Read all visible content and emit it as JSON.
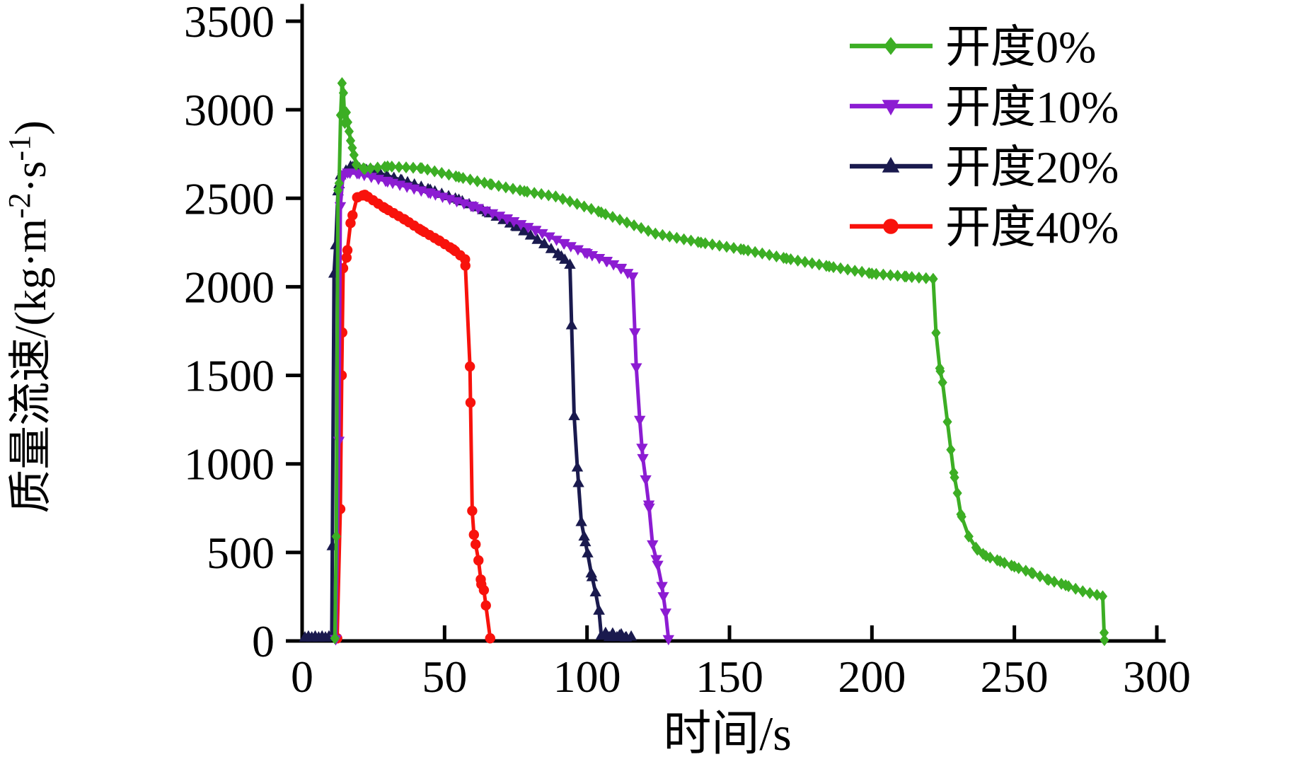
{
  "chart_data": {
    "type": "line",
    "title": "",
    "xlabel": "时间/s",
    "ylabel_plain": "质量流速/(kg·m⁻²·s⁻¹)",
    "ylabel_parts": {
      "p1": "质量流速/(kg·m",
      "sup1": "-2",
      "p2": "·s",
      "sup2": "-1",
      "p3": ")"
    },
    "xlim": [
      0,
      300
    ],
    "ylim": [
      0,
      3500
    ],
    "x_ticks": [
      0,
      50,
      100,
      150,
      200,
      250,
      300
    ],
    "y_ticks": [
      0,
      500,
      1000,
      1500,
      2000,
      2500,
      3000,
      3500
    ],
    "grid": false,
    "legend_position": "top-right",
    "axis_color": "#000000",
    "series": [
      {
        "name": "开度0%",
        "color": "#3CAE24",
        "marker": "diamond",
        "marker_dt": 2.5,
        "points": [
          [
            11.5,
            15
          ],
          [
            12,
            590
          ],
          [
            12.6,
            2545
          ],
          [
            13,
            2585
          ],
          [
            13.5,
            2970
          ],
          [
            14,
            3150
          ],
          [
            14.5,
            3095
          ],
          [
            15,
            2925
          ],
          [
            15.5,
            2985
          ],
          [
            16,
            2930
          ],
          [
            17,
            2825
          ],
          [
            17.6,
            2785
          ],
          [
            18.2,
            2745
          ],
          [
            19,
            2690
          ],
          [
            22,
            2665
          ],
          [
            30,
            2680
          ],
          [
            42,
            2670
          ],
          [
            55,
            2620
          ],
          [
            66,
            2580
          ],
          [
            78,
            2540
          ],
          [
            89,
            2510
          ],
          [
            105,
            2420
          ],
          [
            124,
            2300
          ],
          [
            140,
            2250
          ],
          [
            155,
            2210
          ],
          [
            170,
            2160
          ],
          [
            185,
            2115
          ],
          [
            200,
            2075
          ],
          [
            212,
            2058
          ],
          [
            221.5,
            2045
          ],
          [
            222.5,
            1740
          ],
          [
            223.8,
            1540
          ],
          [
            224.8,
            1460
          ],
          [
            227.7,
            1080
          ],
          [
            228.7,
            950
          ],
          [
            230,
            835
          ],
          [
            231.2,
            715
          ],
          [
            234,
            590
          ],
          [
            237,
            515
          ],
          [
            240,
            480
          ],
          [
            245,
            450
          ],
          [
            250,
            420
          ],
          [
            256,
            385
          ],
          [
            262,
            345
          ],
          [
            268,
            315
          ],
          [
            274,
            280
          ],
          [
            281,
            252
          ],
          [
            281.6,
            5
          ]
        ]
      },
      {
        "name": "开度10%",
        "color": "#8C1CD2",
        "marker": "triangle-down",
        "marker_dt": 2.5,
        "points": [
          [
            11.8,
            10
          ],
          [
            12.9,
            1130
          ],
          [
            13.4,
            2455
          ],
          [
            14.4,
            2635
          ],
          [
            16,
            2645
          ],
          [
            20,
            2640
          ],
          [
            30,
            2595
          ],
          [
            45,
            2530
          ],
          [
            60,
            2455
          ],
          [
            72,
            2385
          ],
          [
            82,
            2320
          ],
          [
            92,
            2245
          ],
          [
            100,
            2190
          ],
          [
            107,
            2145
          ],
          [
            112,
            2105
          ],
          [
            116,
            2058
          ],
          [
            117.3,
            1545
          ],
          [
            118.5,
            1248
          ],
          [
            119.6,
            1032
          ],
          [
            120.6,
            912
          ],
          [
            121.7,
            770
          ],
          [
            123,
            545
          ],
          [
            124.8,
            430
          ],
          [
            126.3,
            310
          ],
          [
            127.6,
            160
          ],
          [
            128.6,
            10
          ]
        ]
      },
      {
        "name": "开度20%",
        "color": "#1A1A4E",
        "marker": "triangle-up",
        "marker_dt": 2.4,
        "points": [
          [
            1,
            20
          ],
          [
            2.2,
            26
          ],
          [
            3.4,
            20
          ],
          [
            4.6,
            26
          ],
          [
            5.8,
            20
          ],
          [
            7,
            26
          ],
          [
            8.2,
            20
          ],
          [
            9.4,
            26
          ],
          [
            10.4,
            22
          ],
          [
            11.2,
            2075
          ],
          [
            11.8,
            2235
          ],
          [
            12.6,
            2540
          ],
          [
            13.5,
            2630
          ],
          [
            17,
            2680
          ],
          [
            25,
            2652
          ],
          [
            35,
            2602
          ],
          [
            45,
            2548
          ],
          [
            55,
            2492
          ],
          [
            65,
            2422
          ],
          [
            75,
            2342
          ],
          [
            85,
            2242
          ],
          [
            91,
            2172
          ],
          [
            94,
            2125
          ],
          [
            95.5,
            1270
          ],
          [
            96.6,
            980
          ],
          [
            98,
            672
          ],
          [
            99,
            590
          ],
          [
            100.2,
            495
          ],
          [
            101.5,
            382
          ],
          [
            103,
            275
          ],
          [
            104.2,
            172
          ],
          [
            105,
            30
          ],
          [
            106.5,
            45
          ],
          [
            107.8,
            22
          ],
          [
            109,
            42
          ],
          [
            110.5,
            22
          ],
          [
            112,
            38
          ],
          [
            113.5,
            20
          ],
          [
            115.5,
            25
          ]
        ]
      },
      {
        "name": "开度40%",
        "color": "#F8120C",
        "marker": "circle",
        "marker_dt": 1.8,
        "points": [
          [
            12.3,
            15
          ],
          [
            13.4,
            745
          ],
          [
            13.9,
            1500
          ],
          [
            14.4,
            2105
          ],
          [
            15.6,
            2165
          ],
          [
            17,
            2360
          ],
          [
            19.3,
            2505
          ],
          [
            22,
            2520
          ],
          [
            29,
            2445
          ],
          [
            36,
            2380
          ],
          [
            42,
            2318
          ],
          [
            48,
            2262
          ],
          [
            53,
            2212
          ],
          [
            57.2,
            2155
          ],
          [
            58.9,
            1550
          ],
          [
            59.7,
            735
          ],
          [
            60.3,
            600
          ],
          [
            61.9,
            455
          ],
          [
            62.9,
            320
          ],
          [
            63.8,
            287
          ],
          [
            66,
            15
          ]
        ]
      }
    ],
    "legend_items": [
      "开度0%",
      "开度10%",
      "开度20%",
      "开度40%"
    ]
  }
}
